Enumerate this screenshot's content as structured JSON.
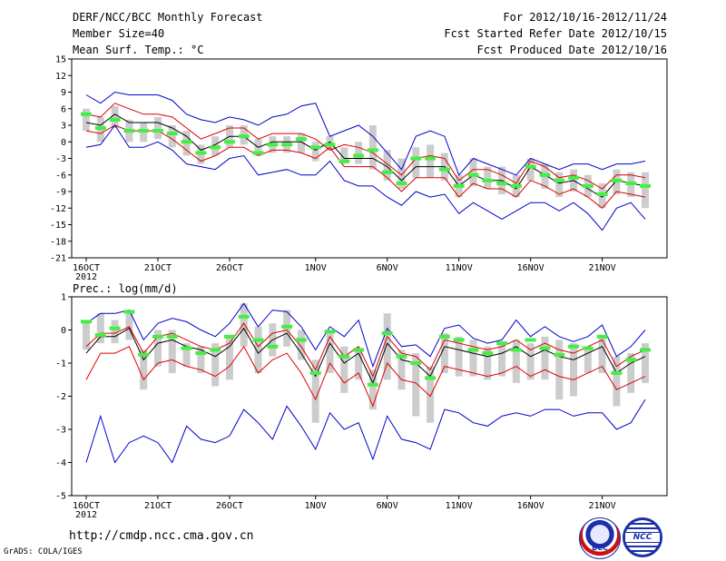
{
  "header": {
    "title": "DERF/NCC/BCC Monthly Forecast",
    "member_size": "Member Size=40",
    "variable": "Mean Surf. Temp.: °C",
    "period": "For 2012/10/16-2012/11/24",
    "started": "Fcst Started Refer Date 2012/10/15",
    "produced": "Fcst Produced Date 2012/10/16"
  },
  "precip_label": "Prec.: log(mm/d)",
  "footer": {
    "url": "http://cmdp.ncc.cma.gov.cn",
    "grads": "GrADS: COLA/IGES",
    "logo_bcc": "BCC",
    "logo_ncc": "NCC"
  },
  "colors": {
    "ensemble_max_min": "#0000cc",
    "spread": "#dd0000",
    "mean": "#000000",
    "member_box": "#cccccc",
    "median": "#44ee44"
  },
  "chart_data": [
    {
      "type": "line",
      "title": "Mean Surf. Temp.",
      "ylabel": "°C",
      "ylim": [
        -21,
        15
      ],
      "yticks": [
        15,
        12,
        9,
        6,
        3,
        0,
        -3,
        -6,
        -9,
        -12,
        -15,
        -18,
        -21
      ],
      "xticks": [
        {
          "day": 0,
          "label": "16OCT"
        },
        {
          "day": 5,
          "label": "21OCT"
        },
        {
          "day": 10,
          "label": "26OCT"
        },
        {
          "day": 16,
          "label": "1NOV"
        },
        {
          "day": 21,
          "label": "6NOV"
        },
        {
          "day": 26,
          "label": "11NOV"
        },
        {
          "day": 31,
          "label": "16NOV"
        },
        {
          "day": 36,
          "label": "21NOV"
        }
      ],
      "year_label": "2012",
      "days": 40,
      "series": [
        {
          "name": "max",
          "values": [
            8.5,
            7,
            9,
            8.5,
            8.5,
            8.5,
            7.5,
            5,
            4,
            3.5,
            4.5,
            4,
            3,
            4.5,
            5,
            6.5,
            7,
            1,
            2,
            3,
            1,
            -2,
            -5,
            1,
            2,
            1,
            -6,
            -3,
            -4,
            -5,
            -6,
            -3,
            -4,
            -5,
            -4,
            -4,
            -5,
            -4,
            -4,
            -3.5
          ]
        },
        {
          "name": "spread_hi",
          "values": [
            5,
            4.5,
            7,
            6,
            5,
            5,
            4.5,
            2.5,
            0.5,
            1.5,
            2.5,
            2.5,
            0.5,
            1.5,
            1.5,
            1.5,
            0.5,
            -1.5,
            -0.5,
            -1,
            -2,
            -4,
            -6,
            -3,
            -2.5,
            -3,
            -7,
            -5,
            -5,
            -6,
            -7.5,
            -3.5,
            -4.5,
            -6.5,
            -6,
            -7,
            -8.5,
            -6,
            -6,
            -6.5
          ]
        },
        {
          "name": "mean",
          "values": [
            3.5,
            3,
            5,
            3.5,
            3.5,
            3.5,
            2.5,
            1,
            -1.5,
            -0.5,
            1,
            1,
            -1,
            0,
            0,
            0,
            -1.5,
            0,
            -3,
            -3,
            -3,
            -4.5,
            -7,
            -4.5,
            -4.5,
            -4.5,
            -8,
            -6,
            -7,
            -7,
            -8.5,
            -4.5,
            -6,
            -7.5,
            -7,
            -8.5,
            -10,
            -7,
            -7.5,
            -8
          ]
        },
        {
          "name": "spread_lo",
          "values": [
            2,
            1.5,
            3,
            2,
            2,
            2,
            0.5,
            -1.5,
            -3.5,
            -2.5,
            -1,
            -1,
            -2.5,
            -1.5,
            -1.5,
            -2,
            -3,
            -1,
            -4.5,
            -4.5,
            -4.5,
            -6.5,
            -9,
            -6.5,
            -6.5,
            -6.5,
            -10,
            -7.5,
            -8.5,
            -8.5,
            -10,
            -7,
            -8,
            -9.5,
            -8.5,
            -10,
            -12,
            -9,
            -9.5,
            -10
          ]
        },
        {
          "name": "min",
          "values": [
            -1,
            -0.5,
            3,
            -1,
            -1,
            0,
            -1.5,
            -4,
            -4.5,
            -5,
            -3,
            -2.5,
            -6,
            -5.5,
            -5,
            -6,
            -6,
            -3.5,
            -7,
            -8,
            -8,
            -10,
            -11.5,
            -9,
            -10,
            -9.5,
            -13,
            -11,
            -12.5,
            -14,
            -12.5,
            -11,
            -11,
            -12.5,
            -11,
            -13,
            -16,
            -12,
            -11,
            -14
          ]
        }
      ],
      "boxes": [
        [
          2,
          6
        ],
        [
          0,
          4.5
        ],
        [
          2.5,
          6.5
        ],
        [
          0,
          4
        ],
        [
          0,
          3.5
        ],
        [
          0.5,
          4.5
        ],
        [
          -1,
          3
        ],
        [
          -2.5,
          2
        ],
        [
          -4,
          -0.5
        ],
        [
          -2.5,
          1
        ],
        [
          -1,
          3
        ],
        [
          -0.5,
          3
        ],
        [
          -2.5,
          0.5
        ],
        [
          -2,
          1
        ],
        [
          -2,
          1
        ],
        [
          -2,
          1.5
        ],
        [
          -3.5,
          0
        ],
        [
          -1.5,
          1
        ],
        [
          -4,
          -1
        ],
        [
          -4,
          0
        ],
        [
          -5,
          3
        ],
        [
          -7,
          -1.5
        ],
        [
          -8.5,
          -3
        ],
        [
          -6.5,
          -1
        ],
        [
          -6.5,
          -0.5
        ],
        [
          -7,
          -2
        ],
        [
          -10,
          -6
        ],
        [
          -8,
          -3
        ],
        [
          -8.5,
          -4.5
        ],
        [
          -9.5,
          -4.5
        ],
        [
          -10,
          -6
        ],
        [
          -7,
          -3
        ],
        [
          -8.5,
          -4
        ],
        [
          -10,
          -5.5
        ],
        [
          -9,
          -5
        ],
        [
          -10,
          -6
        ],
        [
          -12,
          -7.5
        ],
        [
          -9.5,
          -5
        ],
        [
          -10,
          -5.5
        ],
        [
          -12,
          -5.5
        ]
      ],
      "medians": [
        5,
        2.5,
        4,
        2,
        2,
        2,
        1.5,
        0,
        -2,
        -1,
        0,
        1,
        -2,
        -0.5,
        -0.5,
        0.5,
        -1,
        -0.5,
        -3.5,
        -2.5,
        -1.5,
        -5.5,
        -7.5,
        -3,
        -3,
        -5,
        -8,
        -6,
        -7,
        -7.5,
        -8,
        -4.5,
        -6,
        -7,
        -6.5,
        -8,
        -9.5,
        -7,
        -7.5,
        -8
      ]
    },
    {
      "type": "line",
      "title": "Prec.",
      "ylabel": "log(mm/d)",
      "ylim": [
        -5,
        1
      ],
      "yticks": [
        1,
        0,
        -1,
        -2,
        -3,
        -4,
        -5
      ],
      "xticks": [
        {
          "day": 0,
          "label": "16OCT"
        },
        {
          "day": 5,
          "label": "21OCT"
        },
        {
          "day": 10,
          "label": "26OCT"
        },
        {
          "day": 16,
          "label": "1NOV"
        },
        {
          "day": 21,
          "label": "6NOV"
        },
        {
          "day": 26,
          "label": "11NOV"
        },
        {
          "day": 31,
          "label": "16NOV"
        },
        {
          "day": 36,
          "label": "21NOV"
        }
      ],
      "year_label": "2012",
      "days": 40,
      "series": [
        {
          "name": "max",
          "values": [
            0.2,
            0.5,
            0.5,
            0.6,
            -0.3,
            0.2,
            0.35,
            0.25,
            0,
            -0.2,
            0.2,
            0.8,
            0.1,
            0.6,
            0.55,
            0.1,
            -0.6,
            0.1,
            -0.2,
            0.3,
            -1.1,
            0.05,
            -0.5,
            -0.45,
            -0.8,
            0.05,
            0.15,
            -0.25,
            -0.4,
            -0.3,
            0.3,
            -0.2,
            0.1,
            -0.2,
            -0.35,
            -0.2,
            0.15,
            -0.8,
            -0.5,
            0
          ]
        },
        {
          "name": "spread_hi",
          "values": [
            -0.5,
            -0.1,
            -0.1,
            0.1,
            -0.7,
            -0.2,
            -0.1,
            -0.3,
            -0.5,
            -0.6,
            -0.4,
            0.2,
            -0.5,
            -0.1,
            0,
            -0.5,
            -1.2,
            -0.2,
            -0.8,
            -0.5,
            -1.4,
            -0.2,
            -0.7,
            -0.8,
            -1.2,
            -0.3,
            -0.4,
            -0.5,
            -0.6,
            -0.5,
            -0.3,
            -0.6,
            -0.4,
            -0.6,
            -0.7,
            -0.5,
            -0.3,
            -1.1,
            -0.8,
            -0.6
          ]
        },
        {
          "name": "mean",
          "values": [
            -0.7,
            -0.2,
            -0.2,
            0.05,
            -0.9,
            -0.4,
            -0.3,
            -0.5,
            -0.6,
            -0.8,
            -0.5,
            0.05,
            -0.7,
            -0.3,
            -0.1,
            -0.7,
            -1.4,
            -0.4,
            -1,
            -0.7,
            -1.6,
            -0.4,
            -0.9,
            -1,
            -1.4,
            -0.5,
            -0.6,
            -0.7,
            -0.8,
            -0.7,
            -0.5,
            -0.8,
            -0.6,
            -0.8,
            -0.9,
            -0.7,
            -0.5,
            -1.3,
            -1,
            -0.8
          ]
        },
        {
          "name": "spread_lo",
          "values": [
            -1.5,
            -0.7,
            -0.7,
            -0.5,
            -1.5,
            -1,
            -0.9,
            -1.1,
            -1.2,
            -1.4,
            -1.1,
            -0.5,
            -1.3,
            -0.9,
            -0.7,
            -1.3,
            -2.1,
            -1,
            -1.6,
            -1.3,
            -2.3,
            -1,
            -1.5,
            -1.6,
            -2,
            -1.1,
            -1.2,
            -1.3,
            -1.4,
            -1.3,
            -1.1,
            -1.4,
            -1.2,
            -1.4,
            -1.5,
            -1.3,
            -1.1,
            -1.8,
            -1.6,
            -1.4
          ]
        },
        {
          "name": "min",
          "values": [
            -4,
            -2.6,
            -4,
            -3.4,
            -3.2,
            -3.4,
            -4,
            -2.9,
            -3.3,
            -3.4,
            -3.2,
            -2.4,
            -2.8,
            -3.3,
            -2.3,
            -2.9,
            -3.6,
            -2.5,
            -3,
            -2.8,
            -3.9,
            -2.6,
            -3.3,
            -3.4,
            -3.6,
            -2.4,
            -2.5,
            -2.8,
            -2.9,
            -2.6,
            -2.5,
            -2.6,
            -2.4,
            -2.4,
            -2.6,
            -2.5,
            -2.5,
            -3,
            -2.8,
            -2.1
          ]
        }
      ],
      "boxes": [
        [
          -0.6,
          0.3
        ],
        [
          -0.4,
          0.5
        ],
        [
          -0.4,
          0.3
        ],
        [
          -0.3,
          0.6
        ],
        [
          -1.8,
          -0.6
        ],
        [
          -1.1,
          0
        ],
        [
          -1.3,
          0
        ],
        [
          -1.1,
          -0.4
        ],
        [
          -1.3,
          -0.5
        ],
        [
          -1.7,
          -0.4
        ],
        [
          -1.5,
          -0.2
        ],
        [
          -0.5,
          0.8
        ],
        [
          -1.3,
          0.1
        ],
        [
          -0.8,
          0.2
        ],
        [
          -0.5,
          0.6
        ],
        [
          -0.9,
          0
        ],
        [
          -2.8,
          -0.9
        ],
        [
          -1.3,
          -0.1
        ],
        [
          -1.9,
          -0.5
        ],
        [
          -1.5,
          -0.6
        ],
        [
          -2.4,
          -1.2
        ],
        [
          -1.5,
          0.5
        ],
        [
          -1.8,
          -0.6
        ],
        [
          -2.6,
          -0.7
        ],
        [
          -2.8,
          -1.1
        ],
        [
          -1.3,
          -0.1
        ],
        [
          -1.4,
          -0.2
        ],
        [
          -1.4,
          -0.3
        ],
        [
          -1.5,
          -0.5
        ],
        [
          -1.4,
          -0.4
        ],
        [
          -1.6,
          -0.3
        ],
        [
          -1.5,
          -0.4
        ],
        [
          -1.5,
          -0.2
        ],
        [
          -2.1,
          -0.3
        ],
        [
          -2,
          -0.4
        ],
        [
          -1.3,
          -0.5
        ],
        [
          -1.3,
          -0.2
        ],
        [
          -2.3,
          -0.8
        ],
        [
          -1.9,
          -0.7
        ],
        [
          -1.6,
          -0.4
        ]
      ],
      "medians": [
        0.25,
        -0.15,
        0.05,
        0.55,
        -0.75,
        -0.2,
        -0.2,
        -0.55,
        -0.7,
        -0.6,
        -0.2,
        0.4,
        -0.3,
        -0.5,
        0.1,
        -0.3,
        -1.3,
        -0.05,
        -0.8,
        -0.6,
        -1.65,
        -0.1,
        -0.8,
        -1,
        -1.45,
        -0.2,
        -0.3,
        -0.6,
        -0.7,
        -0.4,
        -0.6,
        -0.3,
        -0.55,
        -0.75,
        -0.5,
        -0.55,
        -0.2,
        -1.3,
        -0.9,
        -0.6
      ]
    }
  ]
}
